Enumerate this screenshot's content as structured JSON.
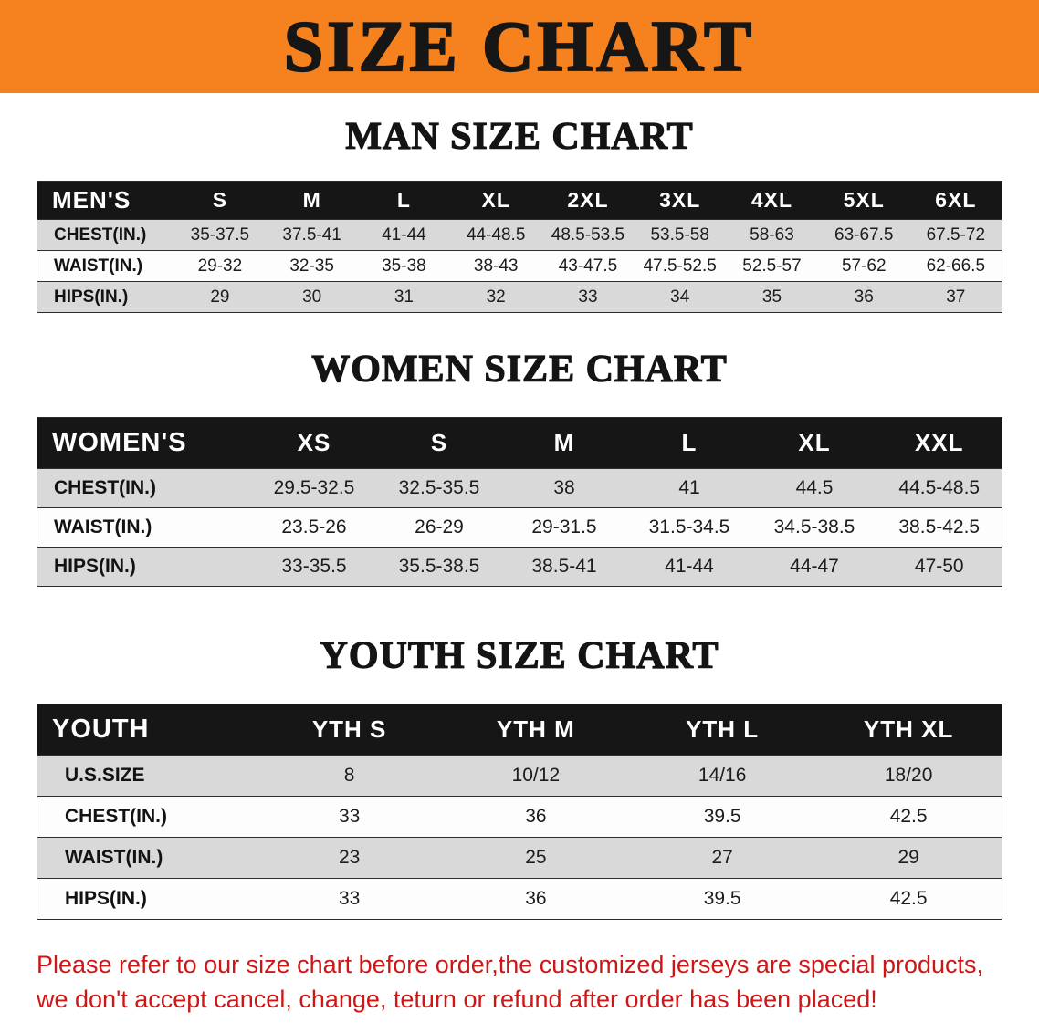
{
  "banner": {
    "title": "SIZE CHART"
  },
  "colors": {
    "banner-bg": "#f5821f",
    "header-bg": "#161616",
    "row-gray": "#d9d9d9",
    "disclaimer-red": "#cd1717"
  },
  "sections": [
    {
      "id": "men",
      "heading": "MAN SIZE CHART",
      "table": {
        "header": [
          "MEN'S",
          "S",
          "M",
          "L",
          "XL",
          "2XL",
          "3XL",
          "4XL",
          "5XL",
          "6XL"
        ],
        "rows": [
          [
            "CHEST(IN.)",
            "35-37.5",
            "37.5-41",
            "41-44",
            "44-48.5",
            "48.5-53.5",
            "53.5-58",
            "58-63",
            "63-67.5",
            "67.5-72"
          ],
          [
            "WAIST(IN.)",
            "29-32",
            "32-35",
            "35-38",
            "38-43",
            "43-47.5",
            "47.5-52.5",
            "52.5-57",
            "57-62",
            "62-66.5"
          ],
          [
            "HIPS(IN.)",
            "29",
            "30",
            "31",
            "32",
            "33",
            "34",
            "35",
            "36",
            "37"
          ]
        ]
      }
    },
    {
      "id": "women",
      "heading": "WOMEN SIZE CHART",
      "table": {
        "header": [
          "WOMEN'S",
          "XS",
          "S",
          "M",
          "L",
          "XL",
          "XXL"
        ],
        "rows": [
          [
            "CHEST(IN.)",
            "29.5-32.5",
            "32.5-35.5",
            "38",
            "41",
            "44.5",
            "44.5-48.5"
          ],
          [
            "WAIST(IN.)",
            "23.5-26",
            "26-29",
            "29-31.5",
            "31.5-34.5",
            "34.5-38.5",
            "38.5-42.5"
          ],
          [
            "HIPS(IN.)",
            "33-35.5",
            "35.5-38.5",
            "38.5-41",
            "41-44",
            "44-47",
            "47-50"
          ]
        ]
      }
    },
    {
      "id": "youth",
      "heading": "YOUTH SIZE CHART",
      "table": {
        "header": [
          "YOUTH",
          "YTH S",
          "YTH M",
          "YTH L",
          "YTH XL"
        ],
        "rows": [
          [
            "U.S.SIZE",
            "8",
            "10/12",
            "14/16",
            "18/20"
          ],
          [
            "CHEST(IN.)",
            "33",
            "36",
            "39.5",
            "42.5"
          ],
          [
            "WAIST(IN.)",
            "23",
            "25",
            "27",
            "29"
          ],
          [
            "HIPS(IN.)",
            "33",
            "36",
            "39.5",
            "42.5"
          ]
        ]
      }
    }
  ],
  "disclaimer": {
    "line1": "Please refer to our size chart before order,the customized jerseys are special products,",
    "line2": "we don't accept cancel, change, teturn or refund after order has been placed!"
  }
}
